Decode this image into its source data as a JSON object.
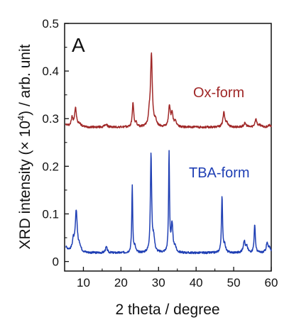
{
  "chart_data": {
    "type": "line",
    "panel_label": "A",
    "xlabel": "2 theta / degree",
    "ylabel_parts": [
      "XRD intensity (× 10",
      "4",
      ") / arb. unit"
    ],
    "xlim": [
      5,
      60
    ],
    "ylim": [
      -0.02,
      0.5
    ],
    "xticks": [
      10,
      20,
      30,
      40,
      50,
      60
    ],
    "yticks": [
      0,
      0.1,
      0.2,
      0.3,
      0.4,
      0.5
    ],
    "xtick_labels": [
      "10",
      "20",
      "30",
      "40",
      "50",
      "60"
    ],
    "ytick_labels": [
      "0",
      "0.1",
      "0.2",
      "0.3",
      "0.4",
      "0.5"
    ],
    "grid": false,
    "series": [
      {
        "name": "Ox-form",
        "color": "#a02828",
        "baseline": 0.282,
        "start": [
          5.3,
          0.287
        ],
        "noise": 0.0022,
        "peaks": [
          [
            7.0,
            0.018,
            0.28
          ],
          [
            7.9,
            0.038,
            0.3
          ],
          [
            9.0,
            0.006,
            0.5
          ],
          [
            16.0,
            0.006,
            0.4
          ],
          [
            23.2,
            0.052,
            0.22
          ],
          [
            24.0,
            0.008,
            0.3
          ],
          [
            27.5,
            0.022,
            0.25
          ],
          [
            28.1,
            0.152,
            0.28
          ],
          [
            29.2,
            0.012,
            0.35
          ],
          [
            32.9,
            0.044,
            0.25
          ],
          [
            33.6,
            0.028,
            0.3
          ],
          [
            34.5,
            0.01,
            0.4
          ],
          [
            47.4,
            0.03,
            0.3
          ],
          [
            48.2,
            0.008,
            0.4
          ],
          [
            53.0,
            0.008,
            0.4
          ],
          [
            55.9,
            0.017,
            0.3
          ],
          [
            57.0,
            0.004,
            0.4
          ],
          [
            59.5,
            0.004,
            0.4
          ]
        ]
      },
      {
        "name": "TBA-form",
        "color": "#1f3fb4",
        "baseline": 0.018,
        "start": [
          5.3,
          0.03
        ],
        "noise": 0.0022,
        "peaks": [
          [
            7.3,
            0.022,
            0.3
          ],
          [
            8.1,
            0.085,
            0.32
          ],
          [
            9.0,
            0.012,
            0.4
          ],
          [
            16.1,
            0.012,
            0.3
          ],
          [
            23.0,
            0.14,
            0.15
          ],
          [
            23.7,
            0.012,
            0.25
          ],
          [
            28.0,
            0.205,
            0.2
          ],
          [
            28.7,
            0.03,
            0.3
          ],
          [
            32.8,
            0.21,
            0.15
          ],
          [
            33.6,
            0.06,
            0.25
          ],
          [
            34.4,
            0.012,
            0.3
          ],
          [
            46.9,
            0.116,
            0.18
          ],
          [
            47.6,
            0.015,
            0.3
          ],
          [
            52.8,
            0.025,
            0.3
          ],
          [
            53.5,
            0.012,
            0.3
          ],
          [
            55.6,
            0.058,
            0.2
          ],
          [
            58.9,
            0.02,
            0.3
          ],
          [
            59.6,
            0.01,
            0.3
          ]
        ]
      }
    ]
  }
}
